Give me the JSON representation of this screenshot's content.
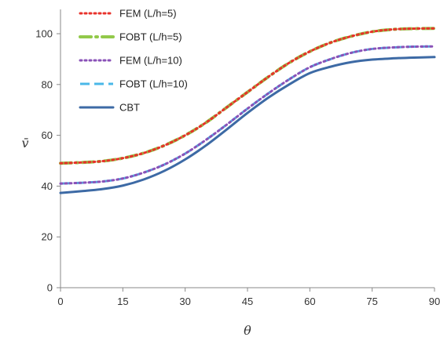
{
  "chart_data": {
    "type": "line",
    "xlabel": "θ",
    "ylabel": "v̄",
    "xlim": [
      0,
      90
    ],
    "ylim": [
      0,
      110
    ],
    "xticks": [
      "0",
      "15",
      "30",
      "45",
      "60",
      "75",
      "90"
    ],
    "yticks": [
      "0",
      "20",
      "40",
      "60",
      "80",
      "100"
    ],
    "grid": false,
    "legend_position": "top-left",
    "x": [
      0,
      5,
      10,
      15,
      20,
      25,
      30,
      35,
      40,
      45,
      50,
      55,
      60,
      65,
      70,
      75,
      80,
      85,
      90
    ],
    "series": [
      {
        "name": "FEM (L/h=5)",
        "color": "#e8322b",
        "style": "dotted",
        "values": [
          49.0,
          49.3,
          49.8,
          51.0,
          53.0,
          56.0,
          60.0,
          65.0,
          71.0,
          77.0,
          83.0,
          88.5,
          93.0,
          96.5,
          99.0,
          100.8,
          101.7,
          102.0,
          102.1
        ]
      },
      {
        "name": "FOBT (L/h=5)",
        "color": "#92c94a",
        "style": "dash-dot",
        "values": [
          49.0,
          49.3,
          49.8,
          51.0,
          53.0,
          56.0,
          60.0,
          65.0,
          71.0,
          77.0,
          83.0,
          88.5,
          93.0,
          96.5,
          99.0,
          100.8,
          101.7,
          102.0,
          102.1
        ]
      },
      {
        "name": "FEM (L/h=10)",
        "color": "#8a52b8",
        "style": "dotted",
        "values": [
          41.0,
          41.3,
          41.8,
          43.0,
          45.3,
          48.5,
          52.8,
          58.2,
          64.2,
          70.5,
          76.5,
          82.0,
          86.8,
          90.0,
          92.5,
          94.0,
          94.6,
          94.9,
          95.0
        ]
      },
      {
        "name": "FOBT (L/h=10)",
        "color": "#4ab8e8",
        "style": "dashed",
        "values": [
          41.0,
          41.3,
          41.8,
          43.0,
          45.3,
          48.5,
          52.8,
          58.2,
          64.2,
          70.5,
          76.5,
          82.0,
          86.8,
          90.0,
          92.5,
          94.0,
          94.6,
          94.9,
          95.0
        ]
      },
      {
        "name": "CBT",
        "color": "#3d6aa5",
        "style": "solid",
        "values": [
          37.3,
          38.0,
          38.8,
          40.2,
          42.6,
          46.0,
          50.5,
          56.0,
          62.3,
          68.8,
          74.8,
          80.0,
          84.5,
          87.0,
          88.8,
          89.8,
          90.3,
          90.6,
          90.8
        ]
      }
    ]
  }
}
